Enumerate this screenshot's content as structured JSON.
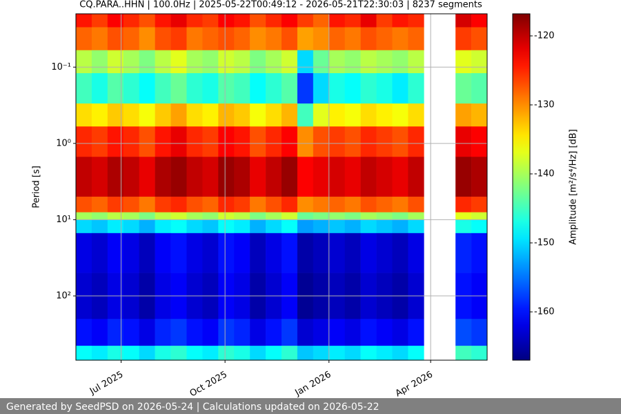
{
  "chart_data": {
    "type": "heatmap",
    "title": "CQ.PARA..HHN | 100.0Hz | 2025-05-22T00:49:12 - 2026-05-21T22:30:03 | 8237 segments",
    "y_label": "Period [s]",
    "colorbar_label": "Amplitude [m²/s⁴/Hz] [dB]",
    "footer": "Generated by SeedPSD on 2026-05-24 | Calculations updated on 2026-05-22",
    "xlim": [
      "2025-05-22",
      "2026-05-21"
    ],
    "xticks": [
      {
        "value": "2025-07-01",
        "label": "Jul 2025"
      },
      {
        "value": "2025-10-01",
        "label": "Oct 2025"
      },
      {
        "value": "2026-01-01",
        "label": "Jan 2026"
      },
      {
        "value": "2026-04-01",
        "label": "Apr 2026"
      }
    ],
    "ylim": [
      0.02,
      695
    ],
    "y_log": true,
    "y_inverted": true,
    "yticks": [
      {
        "value": 0.1,
        "label": "10⁻¹"
      },
      {
        "value": 1,
        "label": "10⁰"
      },
      {
        "value": 10,
        "label": "10¹"
      },
      {
        "value": 100,
        "label": "10²"
      }
    ],
    "grid": true,
    "colormap": "jet",
    "clim": [
      -167,
      -116.8
    ],
    "cticks": [
      -120,
      -130,
      -140,
      -150,
      -160
    ],
    "x_bins": [
      "2025-05-22",
      "2025-06-05",
      "2025-06-19",
      "2025-07-03",
      "2025-07-17",
      "2025-07-31",
      "2025-08-14",
      "2025-08-28",
      "2025-09-11",
      "2025-09-25",
      "2025-10-09",
      "2025-10-23",
      "2025-11-06",
      "2025-11-20",
      "2025-12-04",
      "2025-12-18",
      "2026-01-01",
      "2026-01-15",
      "2026-01-29",
      "2026-02-12",
      "2026-02-26",
      "2026-03-12",
      "2026-03-26",
      "2026-04-09",
      "2026-04-23",
      "2026-05-07",
      "2026-05-21"
    ],
    "y_bins": [
      0.02,
      0.03,
      0.06,
      0.12,
      0.3,
      0.6,
      1.5,
      5,
      8,
      10,
      15,
      50,
      200,
      450,
      695
    ],
    "values": [
      [
        -124,
        -126,
        -123,
        -125,
        -127,
        -124,
        -122,
        -125,
        -126,
        -123,
        -124,
        -127,
        -125,
        -123,
        -126,
        -128,
        -124,
        -125,
        -122,
        -126,
        -124,
        -125,
        null,
        null,
        -121,
        -123
      ],
      [
        -128,
        -129,
        -127,
        -128,
        -130,
        -127,
        -126,
        -129,
        -128,
        -127,
        -128,
        -130,
        -129,
        -127,
        -131,
        -130,
        -128,
        -129,
        -127,
        -128,
        -129,
        -128,
        null,
        null,
        -126,
        -127
      ],
      [
        -139,
        -141,
        -138,
        -140,
        -142,
        -139,
        -137,
        -140,
        -141,
        -138,
        -139,
        -142,
        -140,
        -138,
        -150,
        -143,
        -140,
        -141,
        -139,
        -140,
        -141,
        -139,
        null,
        null,
        -137,
        -138
      ],
      [
        -145,
        -147,
        -144,
        -146,
        -148,
        -145,
        -143,
        -146,
        -147,
        -144,
        -145,
        -148,
        -146,
        -144,
        -158,
        -150,
        -147,
        -148,
        -146,
        -147,
        -149,
        -146,
        null,
        null,
        -143,
        -144
      ],
      [
        -134,
        -135,
        -133,
        -134,
        -136,
        -133,
        -131,
        -134,
        -135,
        -132,
        -133,
        -136,
        -134,
        -132,
        -145,
        -137,
        -135,
        -136,
        -134,
        -135,
        -136,
        -134,
        null,
        null,
        -131,
        -132
      ],
      [
        -125,
        -126,
        -124,
        -125,
        -127,
        -124,
        -122,
        -125,
        -126,
        -123,
        -124,
        -127,
        -125,
        -123,
        -130,
        -127,
        -126,
        -127,
        -125,
        -126,
        -127,
        -125,
        null,
        null,
        -122,
        -123
      ],
      [
        -120,
        -121,
        -119,
        -120,
        -122,
        -119,
        -118,
        -120,
        -121,
        -118,
        -119,
        -122,
        -120,
        -118,
        -123,
        -122,
        -121,
        -122,
        -120,
        -121,
        -122,
        -120,
        null,
        null,
        -118,
        -119
      ],
      [
        -127,
        -128,
        -126,
        -127,
        -129,
        -126,
        -125,
        -127,
        -128,
        -125,
        -126,
        -129,
        -127,
        -125,
        -130,
        -129,
        -128,
        -129,
        -127,
        -128,
        -129,
        -127,
        null,
        null,
        -125,
        -126
      ],
      [
        -140,
        -141,
        -139,
        -140,
        -142,
        -139,
        -138,
        -140,
        -141,
        -138,
        -139,
        -142,
        -140,
        -138,
        -143,
        -142,
        -141,
        -142,
        -140,
        -141,
        -142,
        -140,
        null,
        null,
        -137,
        -138
      ],
      [
        -150,
        -151,
        -149,
        -150,
        -152,
        -149,
        -148,
        -150,
        -151,
        -148,
        -149,
        -152,
        -150,
        -148,
        -153,
        -152,
        -151,
        -152,
        -150,
        -151,
        -152,
        -150,
        null,
        null,
        -147,
        -148
      ],
      [
        -162,
        -163,
        -161,
        -162,
        -164,
        -161,
        -160,
        -162,
        -163,
        -160,
        -161,
        -164,
        -162,
        -160,
        -165,
        -164,
        -163,
        -164,
        -162,
        -163,
        -164,
        -162,
        null,
        null,
        -159,
        -160
      ],
      [
        -163,
        -164,
        -162,
        -163,
        -165,
        -162,
        -161,
        -163,
        -164,
        -161,
        -162,
        -165,
        -163,
        -161,
        -166,
        -165,
        -164,
        -165,
        -163,
        -164,
        -165,
        -163,
        null,
        null,
        -160,
        -161
      ],
      [
        -160,
        -161,
        -159,
        -160,
        -162,
        -159,
        -158,
        -160,
        -161,
        -158,
        -159,
        -162,
        -160,
        -158,
        -163,
        -162,
        -161,
        -162,
        -160,
        -161,
        -162,
        -160,
        null,
        null,
        -157,
        -158
      ],
      [
        -148,
        -149,
        -147,
        -148,
        -150,
        -147,
        -146,
        -148,
        -149,
        -146,
        -147,
        -150,
        -148,
        -146,
        -151,
        -150,
        -149,
        -150,
        -148,
        -149,
        -150,
        -148,
        null,
        null,
        -145,
        -146
      ]
    ]
  }
}
